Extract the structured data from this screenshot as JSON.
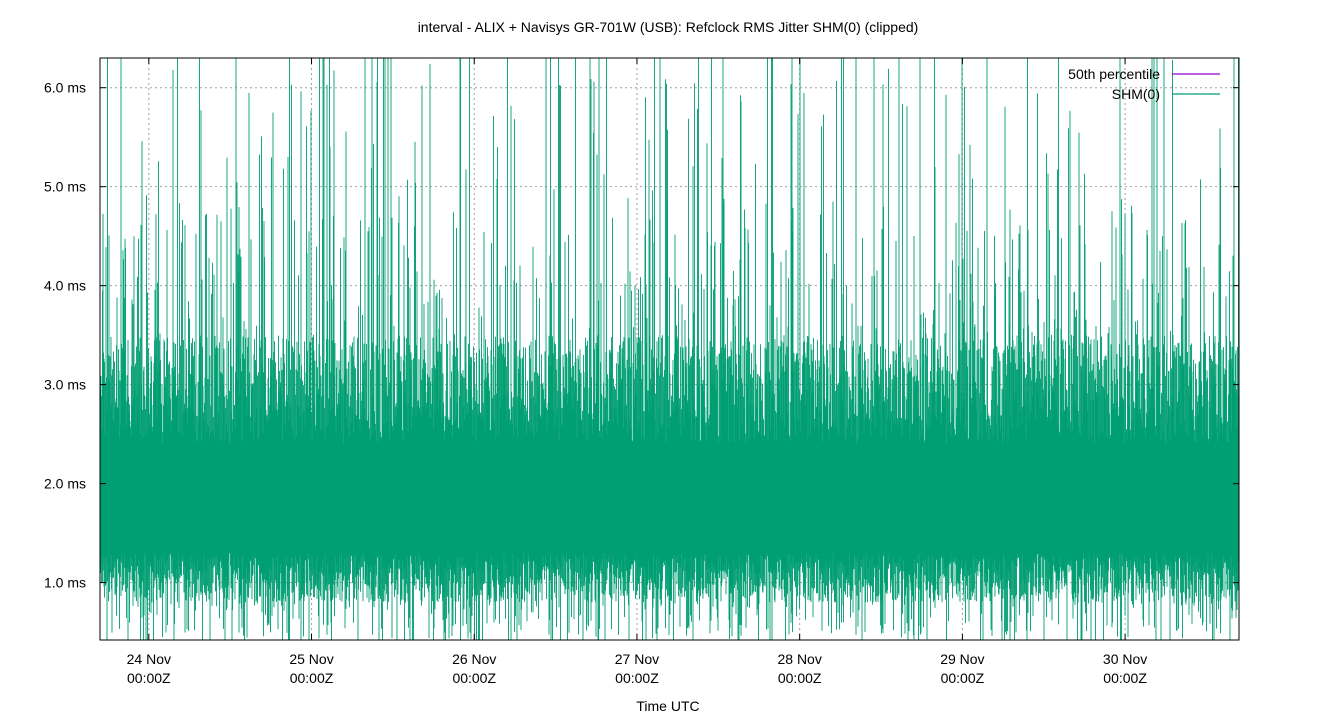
{
  "chart_data": {
    "type": "line",
    "title": "interval - ALIX + Navisys GR-701W (USB): Refclock RMS Jitter SHM(0) (clipped)",
    "xlabel": "Time UTC",
    "ylabel": "",
    "x_ticks": [
      {
        "day": 1,
        "line1": "24 Nov",
        "line2": "00:00Z"
      },
      {
        "day": 2,
        "line1": "25 Nov",
        "line2": "00:00Z"
      },
      {
        "day": 3,
        "line1": "26 Nov",
        "line2": "00:00Z"
      },
      {
        "day": 4,
        "line1": "27 Nov",
        "line2": "00:00Z"
      },
      {
        "day": 5,
        "line1": "28 Nov",
        "line2": "00:00Z"
      },
      {
        "day": 6,
        "line1": "29 Nov",
        "line2": "00:00Z"
      },
      {
        "day": 7,
        "line1": "30 Nov",
        "line2": "00:00Z"
      }
    ],
    "xlim": [
      0.7,
      7.7
    ],
    "ylim": [
      0.42,
      6.3
    ],
    "y_ticks": [
      {
        "value": 1.0,
        "label": "1.0 ms"
      },
      {
        "value": 2.0,
        "label": "2.0 ms"
      },
      {
        "value": 3.0,
        "label": "3.0 ms"
      },
      {
        "value": 4.0,
        "label": "4.0 ms"
      },
      {
        "value": 5.0,
        "label": "5.0 ms"
      },
      {
        "value": 6.0,
        "label": "6.0 ms"
      }
    ],
    "grid": true,
    "legend_position": "top-right",
    "series": [
      {
        "name": "50th percentile",
        "color": "#9400d3",
        "values": [
          1.95
        ]
      },
      {
        "name": "SHM(0)",
        "color": "#009e73",
        "band": {
          "typical_low": 0.8,
          "typical_high": 3.5,
          "spike_max": 6.3,
          "dense_floor": 1.3,
          "dense_ceiling": 2.4
        }
      }
    ]
  }
}
